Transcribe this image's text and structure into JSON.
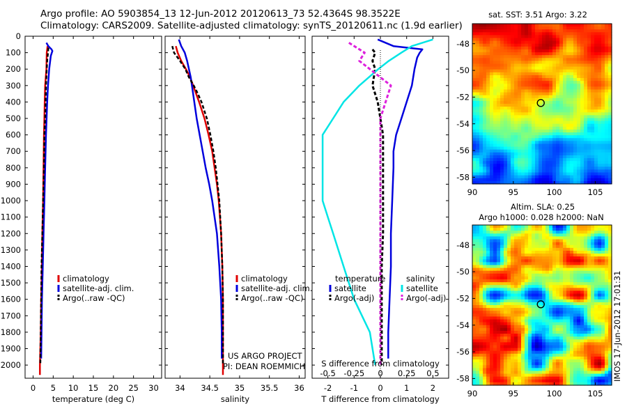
{
  "header": {
    "line1": "Argo profile: AO 5903854_13 12-Jun-2012 20120613_73 52.4364S 98.3522E",
    "line2": "Climatology: CARS2009. Satellite-adjusted climatology: synTS_20120611.nc (1.9d earlier)"
  },
  "colors": {
    "clim": "#e00000",
    "sat": "#0000dd",
    "argo": "#000000",
    "sat_s": "#00e5e5",
    "argo_s": "#dd22dd"
  },
  "depth_ticks": [
    "0",
    "100",
    "200",
    "300",
    "400",
    "500",
    "600",
    "700",
    "800",
    "900",
    "1000",
    "1100",
    "1200",
    "1300",
    "1400",
    "1500",
    "1600",
    "1700",
    "1800",
    "1900",
    "2000"
  ],
  "chart_data": [
    {
      "type": "line",
      "name": "temperature",
      "xlabel": "temperature (deg C)",
      "xlim": [
        -2,
        32
      ],
      "ylim": [
        2080,
        0
      ],
      "xticks": [
        "0",
        "5",
        "10",
        "15",
        "20",
        "25",
        "30"
      ],
      "legend": [
        "climatology",
        "satellite-adj. clim.",
        "Argo(..raw -QC)"
      ],
      "series": [
        {
          "name": "climatology",
          "depth": [
            60,
            100,
            200,
            300,
            400,
            500,
            600,
            800,
            1000,
            1200,
            1400,
            1600,
            1800,
            2000,
            2060
          ],
          "values": [
            3.6,
            3.4,
            3.3,
            3.0,
            2.9,
            2.8,
            2.7,
            2.6,
            2.5,
            2.3,
            2.2,
            2.0,
            1.9,
            1.7,
            1.7
          ]
        },
        {
          "name": "satellite-adj. clim.",
          "depth": [
            40,
            60,
            80,
            90,
            120,
            200,
            300,
            400,
            600,
            800,
            1000,
            1200,
            1400,
            1600,
            1800,
            1960
          ],
          "values": [
            3.3,
            3.8,
            4.6,
            4.8,
            4.4,
            4.0,
            3.7,
            3.5,
            3.2,
            3.0,
            2.8,
            2.6,
            2.4,
            2.2,
            2.1,
            2.0
          ]
        },
        {
          "name": "Argo",
          "depth": [
            70,
            100,
            150,
            200,
            300,
            400,
            500,
            600,
            800,
            1000,
            1200,
            1400,
            1600,
            1800,
            2000
          ],
          "values": [
            3.8,
            3.7,
            3.5,
            3.4,
            3.2,
            3.1,
            3.0,
            2.8,
            2.7,
            2.5,
            2.3,
            2.1,
            2.0,
            1.9,
            1.8
          ]
        }
      ]
    },
    {
      "type": "line",
      "name": "salinity",
      "xlabel": "salinity",
      "xlim": [
        33.75,
        36.1
      ],
      "ylim": [
        2080,
        0
      ],
      "xticks": [
        "34",
        "34.5",
        "35",
        "35.5",
        "36"
      ],
      "legend": [
        "climatology",
        "satellite-adj. clim.",
        "Argo(..raw -QC)"
      ],
      "annotation": [
        "US ARGO PROJECT",
        "PI: DEAN ROEMMICH"
      ],
      "series": [
        {
          "name": "climatology",
          "depth": [
            60,
            100,
            150,
            200,
            250,
            300,
            350,
            400,
            500,
            600,
            700,
            800,
            900,
            1000,
            1200,
            1400,
            1600,
            1800,
            2060
          ],
          "values": [
            33.93,
            33.96,
            34.02,
            34.1,
            34.17,
            34.22,
            34.27,
            34.32,
            34.41,
            34.48,
            34.54,
            34.58,
            34.62,
            34.65,
            34.69,
            34.71,
            34.72,
            34.72,
            34.72
          ]
        },
        {
          "name": "satellite-adj. clim.",
          "depth": [
            20,
            60,
            100,
            150,
            200,
            250,
            300,
            400,
            500,
            600,
            700,
            800,
            900,
            1000,
            1100,
            1200,
            1400,
            1600,
            1800,
            1960
          ],
          "values": [
            33.98,
            34.02,
            34.08,
            34.12,
            34.15,
            34.18,
            34.2,
            34.24,
            34.28,
            34.33,
            34.38,
            34.43,
            34.49,
            34.54,
            34.58,
            34.62,
            34.66,
            34.69,
            34.7,
            34.7
          ]
        },
        {
          "name": "Argo",
          "depth": [
            60,
            100,
            150,
            200,
            250,
            300,
            350,
            400,
            500,
            600,
            700,
            800,
            900,
            1000,
            1200,
            1400,
            1600,
            1800,
            2000
          ],
          "values": [
            33.87,
            33.9,
            34.0,
            34.09,
            34.15,
            34.23,
            34.3,
            34.36,
            34.45,
            34.51,
            34.56,
            34.6,
            34.63,
            34.66,
            34.69,
            34.71,
            34.72,
            34.72,
            34.72
          ]
        }
      ]
    },
    {
      "type": "line",
      "name": "difference",
      "xlabel": "T difference from climatology",
      "xlabel2": "S difference from climatology",
      "xlim": [
        -2.6,
        2.6
      ],
      "ylim": [
        2080,
        0
      ],
      "xticks": [
        "-2",
        "-1",
        "0",
        "1",
        "2"
      ],
      "xticks2": [
        "-0.5",
        "-0.25",
        "0",
        "0.25",
        "0.5"
      ],
      "legend_title_t": "temperature",
      "legend_title_s": "salinity",
      "legend": [
        "satellite",
        "Argo(-adj)",
        "satellite",
        "Argo(-adj)"
      ],
      "series": [
        {
          "name": "temperature satellite",
          "depth": [
            20,
            60,
            80,
            100,
            130,
            200,
            300,
            400,
            500,
            600,
            700,
            800,
            1000,
            1200,
            1400,
            1600,
            1800,
            1960
          ],
          "values": [
            -0.1,
            0.5,
            1.6,
            1.5,
            1.4,
            1.3,
            1.2,
            1.0,
            0.8,
            0.6,
            0.5,
            0.5,
            0.45,
            0.4,
            0.4,
            0.35,
            0.3,
            0.3
          ]
        },
        {
          "name": "temperature Argo(-adj)",
          "depth": [
            80,
            100,
            150,
            200,
            300,
            400,
            500,
            600,
            800,
            1000,
            1200,
            1400,
            1600,
            1800,
            2000
          ],
          "values": [
            -0.3,
            -0.2,
            -0.3,
            -0.2,
            -0.3,
            -0.1,
            0.0,
            0.1,
            0.1,
            0.1,
            0.1,
            0.05,
            0.05,
            0.05,
            0.05
          ]
        },
        {
          "name": "salinity satellite",
          "depth": [
            20,
            60,
            100,
            150,
            200,
            300,
            400,
            500,
            600,
            800,
            1000,
            1100,
            1200,
            1400,
            1600,
            1800,
            2000
          ],
          "values": [
            0.5,
            0.3,
            0.2,
            0.08,
            -0.02,
            -0.2,
            -0.35,
            -0.45,
            -0.55,
            -0.55,
            -0.55,
            -0.5,
            -0.45,
            -0.35,
            -0.25,
            -0.1,
            -0.05
          ]
        },
        {
          "name": "salinity Argo(-adj)",
          "depth": [
            40,
            100,
            150,
            200,
            300,
            400,
            500,
            600,
            800,
            1000,
            1200,
            1400,
            1600,
            1800,
            2000
          ],
          "values": [
            -0.3,
            -0.15,
            -0.2,
            -0.1,
            0.1,
            0.05,
            0.0,
            0.0,
            0.0,
            0.0,
            0.0,
            0.0,
            0.0,
            0.0,
            0.0
          ]
        }
      ]
    },
    {
      "type": "heatmap",
      "name": "sst-map",
      "title": "sat. SST: 3.51 Argo: 3.22",
      "xlim": [
        90,
        107
      ],
      "ylim": [
        -58.5,
        -46.5
      ],
      "xticks": [
        "90",
        "95",
        "100",
        "105"
      ],
      "yticks": [
        "-48",
        "-50",
        "-52",
        "-54",
        "-56",
        "-58"
      ],
      "marker": {
        "lon": 98.35,
        "lat": -52.44
      }
    },
    {
      "type": "heatmap",
      "name": "sla-map",
      "title": "Altim. SLA: 0.25",
      "subtitle": "Argo h1000: 0.028 h2000: NaN",
      "xlim": [
        90,
        107
      ],
      "ylim": [
        -58.5,
        -46.5
      ],
      "xticks": [
        "90",
        "95",
        "100",
        "105"
      ],
      "yticks": [
        "-48",
        "-50",
        "-52",
        "-54",
        "-56",
        "-58"
      ],
      "marker": {
        "lon": 98.35,
        "lat": -52.44
      },
      "side_label": "IMOS 17-Jun-2012 17:01:31"
    }
  ]
}
